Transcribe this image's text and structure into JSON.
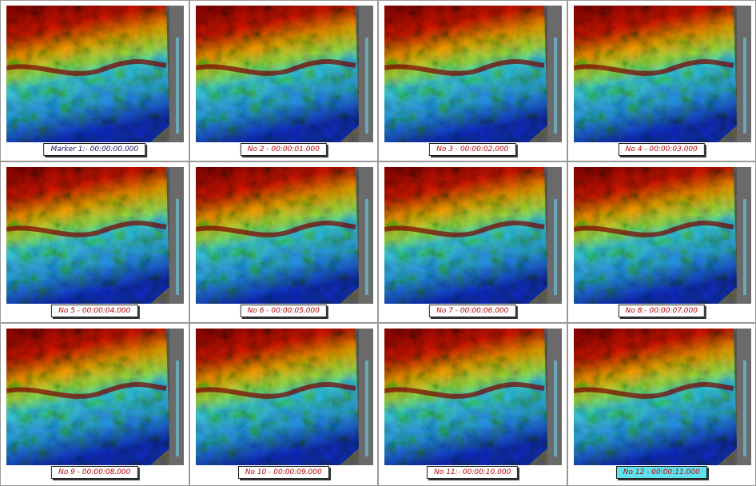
{
  "frames": [
    {
      "caption": "Marker 1:- 00:00:00.000"
    },
    {
      "caption": "No 2 - 00:00:01.000"
    },
    {
      "caption": "No 3 - 00:00:02.000"
    },
    {
      "caption": "No 4 - 00:00:03.000"
    },
    {
      "caption": "No 5 - 00:00:04.000"
    },
    {
      "caption": "No 6 - 00:00:05.000"
    },
    {
      "caption": "No 7 - 00:00:06.000"
    },
    {
      "caption": "No 8:- 00:00:07.000"
    },
    {
      "caption": "No 9 - 00:00:08.000"
    },
    {
      "caption": "No 10 - 00:00:09.000"
    },
    {
      "caption": "No 11:- 00:00:10.000"
    },
    {
      "caption": "No 12 - 00:00:11.000"
    }
  ]
}
